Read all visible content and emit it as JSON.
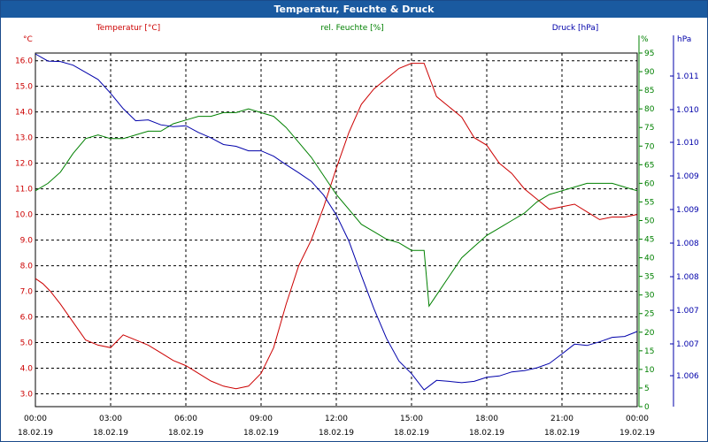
{
  "window": {
    "title": "Temperatur, Feuchte & Druck"
  },
  "colors": {
    "temperature": "#cc0000",
    "humidity": "#008000",
    "pressure": "#0000aa",
    "grid": "#000000",
    "titlebar": "#1a5aa0"
  },
  "chart_data": {
    "type": "line",
    "title": "Temperatur, Feuchte & Druck",
    "grid": true,
    "x_ticks": [
      "00:00",
      "03:00",
      "06:00",
      "09:00",
      "12:00",
      "15:00",
      "18:00",
      "21:00",
      "00:00"
    ],
    "x_dates": [
      "18.02.19",
      "18.02.19",
      "18.02.19",
      "18.02.19",
      "18.02.19",
      "18.02.19",
      "18.02.19",
      "18.02.19",
      "19.02.19"
    ],
    "x_range_hours": [
      0,
      24
    ],
    "axes": {
      "temperature": {
        "label": "Temperatur [°C]",
        "unit": "°C",
        "range": [
          2.5,
          16.3
        ],
        "ticks": [
          "3.0",
          "4.0",
          "5.0",
          "6.0",
          "7.0",
          "8.0",
          "9.0",
          "10.0",
          "11.0",
          "12.0",
          "13.0",
          "14.0",
          "15.0",
          "16.0"
        ]
      },
      "humidity": {
        "label": "rel. Feuchte [%]",
        "unit": "%",
        "range": [
          0,
          100
        ],
        "ticks": [
          "0",
          "5",
          "10",
          "15",
          "20",
          "25",
          "30",
          "35",
          "40",
          "45",
          "50",
          "55",
          "60",
          "65",
          "70",
          "75",
          "80",
          "85",
          "90",
          "95"
        ]
      },
      "pressure": {
        "label": "Druck [hPa]",
        "unit": "hPa",
        "ticks": [
          "1.006",
          "1.007",
          "1.007",
          "1.008",
          "1.008",
          "1.009",
          "1.009",
          "1.010",
          "1.010",
          "1.011"
        ]
      }
    },
    "series": [
      {
        "name": "Temperatur [°C]",
        "axis": "temperature",
        "color": "#cc0000",
        "x": [
          0,
          0.3,
          0.6,
          1,
          1.5,
          2,
          2.5,
          3,
          3.5,
          4,
          4.5,
          5,
          5.5,
          6,
          6.5,
          7,
          7.5,
          8,
          8.5,
          9,
          9.5,
          10,
          10.5,
          11,
          11.5,
          12,
          12.5,
          13,
          13.5,
          14,
          14.5,
          15,
          15.5,
          16,
          16.5,
          17,
          17.5,
          18,
          18.5,
          19,
          19.5,
          20,
          20.5,
          21,
          21.5,
          22,
          22.5,
          23,
          23.5,
          24
        ],
        "y": [
          7.5,
          7.3,
          7.0,
          6.5,
          5.8,
          5.1,
          4.9,
          4.8,
          5.3,
          5.1,
          4.9,
          4.6,
          4.3,
          4.1,
          3.8,
          3.5,
          3.3,
          3.2,
          3.3,
          3.8,
          4.8,
          6.5,
          8.0,
          9.0,
          10.3,
          11.8,
          13.2,
          14.3,
          14.9,
          15.3,
          15.7,
          15.9,
          15.9,
          14.6,
          14.2,
          13.8,
          13.0,
          12.7,
          12.0,
          11.6,
          11.0,
          10.6,
          10.2,
          10.3,
          10.4,
          10.1,
          9.8,
          9.9,
          9.9,
          10.0
        ]
      },
      {
        "name": "rel. Feuchte [%]",
        "axis": "humidity",
        "color": "#008000",
        "x": [
          0,
          0.5,
          1,
          1.5,
          2,
          2.5,
          3,
          3.5,
          4,
          4.5,
          5,
          5.5,
          6,
          6.5,
          7,
          7.5,
          8,
          8.5,
          9,
          9.5,
          10,
          10.5,
          11,
          11.5,
          12,
          12.5,
          13,
          13.5,
          14,
          14.5,
          15,
          15.2,
          15.5,
          15.7,
          16,
          16.5,
          17,
          17.5,
          18,
          18.5,
          19,
          19.5,
          20,
          20.5,
          21,
          21.5,
          22,
          22.5,
          23,
          23.5,
          24
        ],
        "y": [
          58,
          60,
          63,
          68,
          72,
          73,
          72,
          72,
          73,
          74,
          74,
          76,
          77,
          78,
          78,
          79,
          79,
          80,
          79,
          78,
          75,
          71,
          67,
          62,
          57,
          53,
          49,
          47,
          45,
          44,
          42,
          42,
          42,
          27,
          30,
          35,
          40,
          43,
          46,
          48,
          50,
          52,
          55,
          57,
          58,
          59,
          60,
          60,
          60,
          59,
          58
        ]
      },
      {
        "name": "Druck [hPa]",
        "axis": "pressure",
        "color": "#0000aa",
        "x": [
          0,
          0.5,
          1,
          1.5,
          2,
          2.5,
          3,
          3.5,
          4,
          4.5,
          5,
          5.5,
          6,
          6.5,
          7,
          7.5,
          8,
          8.5,
          9,
          9.5,
          10,
          10.5,
          11,
          11.5,
          12,
          12.5,
          13,
          13.5,
          14,
          14.5,
          15,
          15.5,
          16,
          16.5,
          17,
          17.5,
          18,
          18.5,
          19,
          19.5,
          20,
          20.5,
          21,
          21.5,
          22,
          22.5,
          23,
          23.5,
          24
        ],
        "y": [
          1.0118,
          1.01164,
          1.01163,
          1.01155,
          1.01139,
          1.01123,
          1.01092,
          1.01058,
          1.01031,
          1.01033,
          1.01022,
          1.01018,
          1.0102,
          1.01005,
          1.00993,
          1.00978,
          1.00974,
          1.00964,
          1.00964,
          1.00952,
          1.00933,
          1.00915,
          1.00896,
          1.00865,
          1.00821,
          1.00763,
          1.00686,
          1.00612,
          1.00546,
          1.00495,
          1.00467,
          1.00431,
          1.00452,
          1.0045,
          1.00447,
          1.0045,
          1.00459,
          1.00462,
          1.00471,
          1.00474,
          1.0048,
          1.0049,
          1.00511,
          1.00533,
          1.0053,
          1.00538,
          1.00548,
          1.0055,
          1.00561
        ]
      }
    ]
  }
}
